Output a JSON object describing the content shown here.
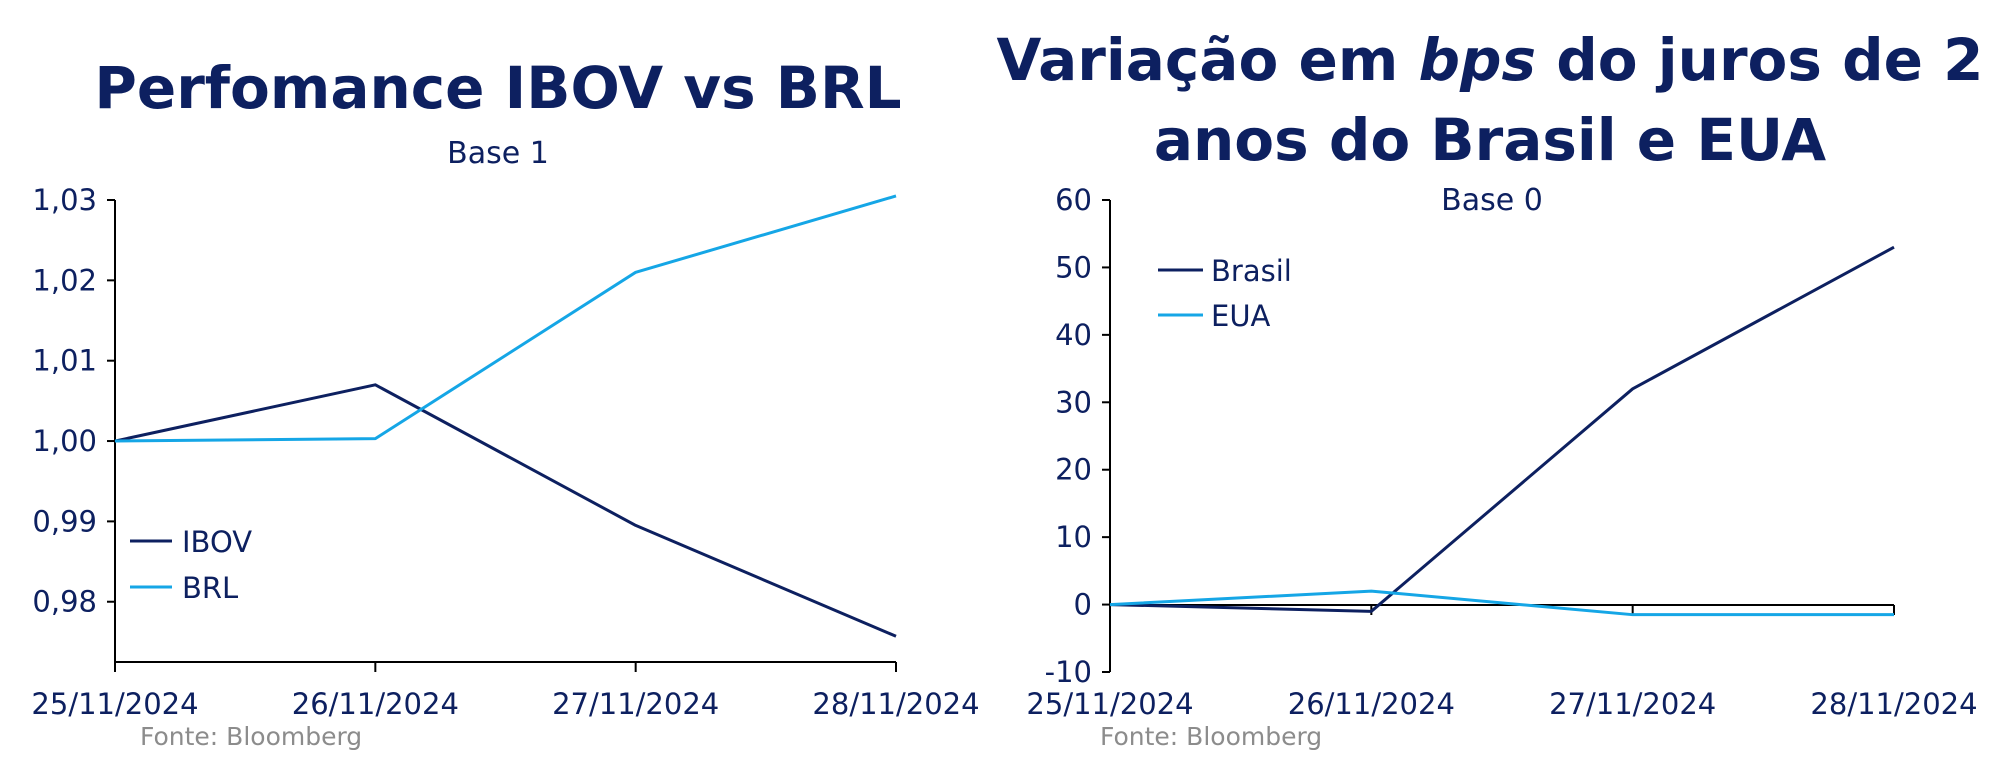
{
  "chart_data": [
    {
      "type": "line",
      "title": "Perfomance IBOV vs BRL",
      "subtitle": "Base 1",
      "x": [
        "25/11/2024",
        "26/11/2024",
        "27/11/2024",
        "28/11/2024"
      ],
      "yticks": [
        "0,98",
        "0,99",
        "1,00",
        "1,01",
        "1,02",
        "1,03"
      ],
      "ylim": [
        0.9725,
        1.03
      ],
      "series": [
        {
          "name": "IBOV",
          "color": "#0d2060",
          "values": [
            1.0,
            1.007,
            0.9895,
            0.9757
          ]
        },
        {
          "name": "BRL",
          "color": "#15a6e6",
          "values": [
            1.0,
            1.0003,
            1.021,
            1.0305
          ]
        }
      ],
      "legend": "lower-left",
      "source": "Fonte: Bloomberg"
    },
    {
      "type": "line",
      "title_prefix": "Variação em ",
      "title_italic": "bps",
      "title_suffix": " do juros de 2",
      "title_line2": "anos do Brasil e EUA",
      "subtitle": "Base 0",
      "x": [
        "25/11/2024",
        "26/11/2024",
        "27/11/2024",
        "28/11/2024"
      ],
      "yticks": [
        "-10",
        "0",
        "10",
        "20",
        "30",
        "40",
        "50",
        "60"
      ],
      "ylim": [
        -10,
        60
      ],
      "series": [
        {
          "name": "Brasil",
          "color": "#0d2060",
          "values": [
            0,
            -1,
            32,
            53
          ]
        },
        {
          "name": "EUA",
          "color": "#15a6e6",
          "values": [
            0,
            2,
            -1.5,
            -1.5
          ]
        }
      ],
      "legend": "upper-left",
      "source": "Fonte: Bloomberg"
    }
  ]
}
